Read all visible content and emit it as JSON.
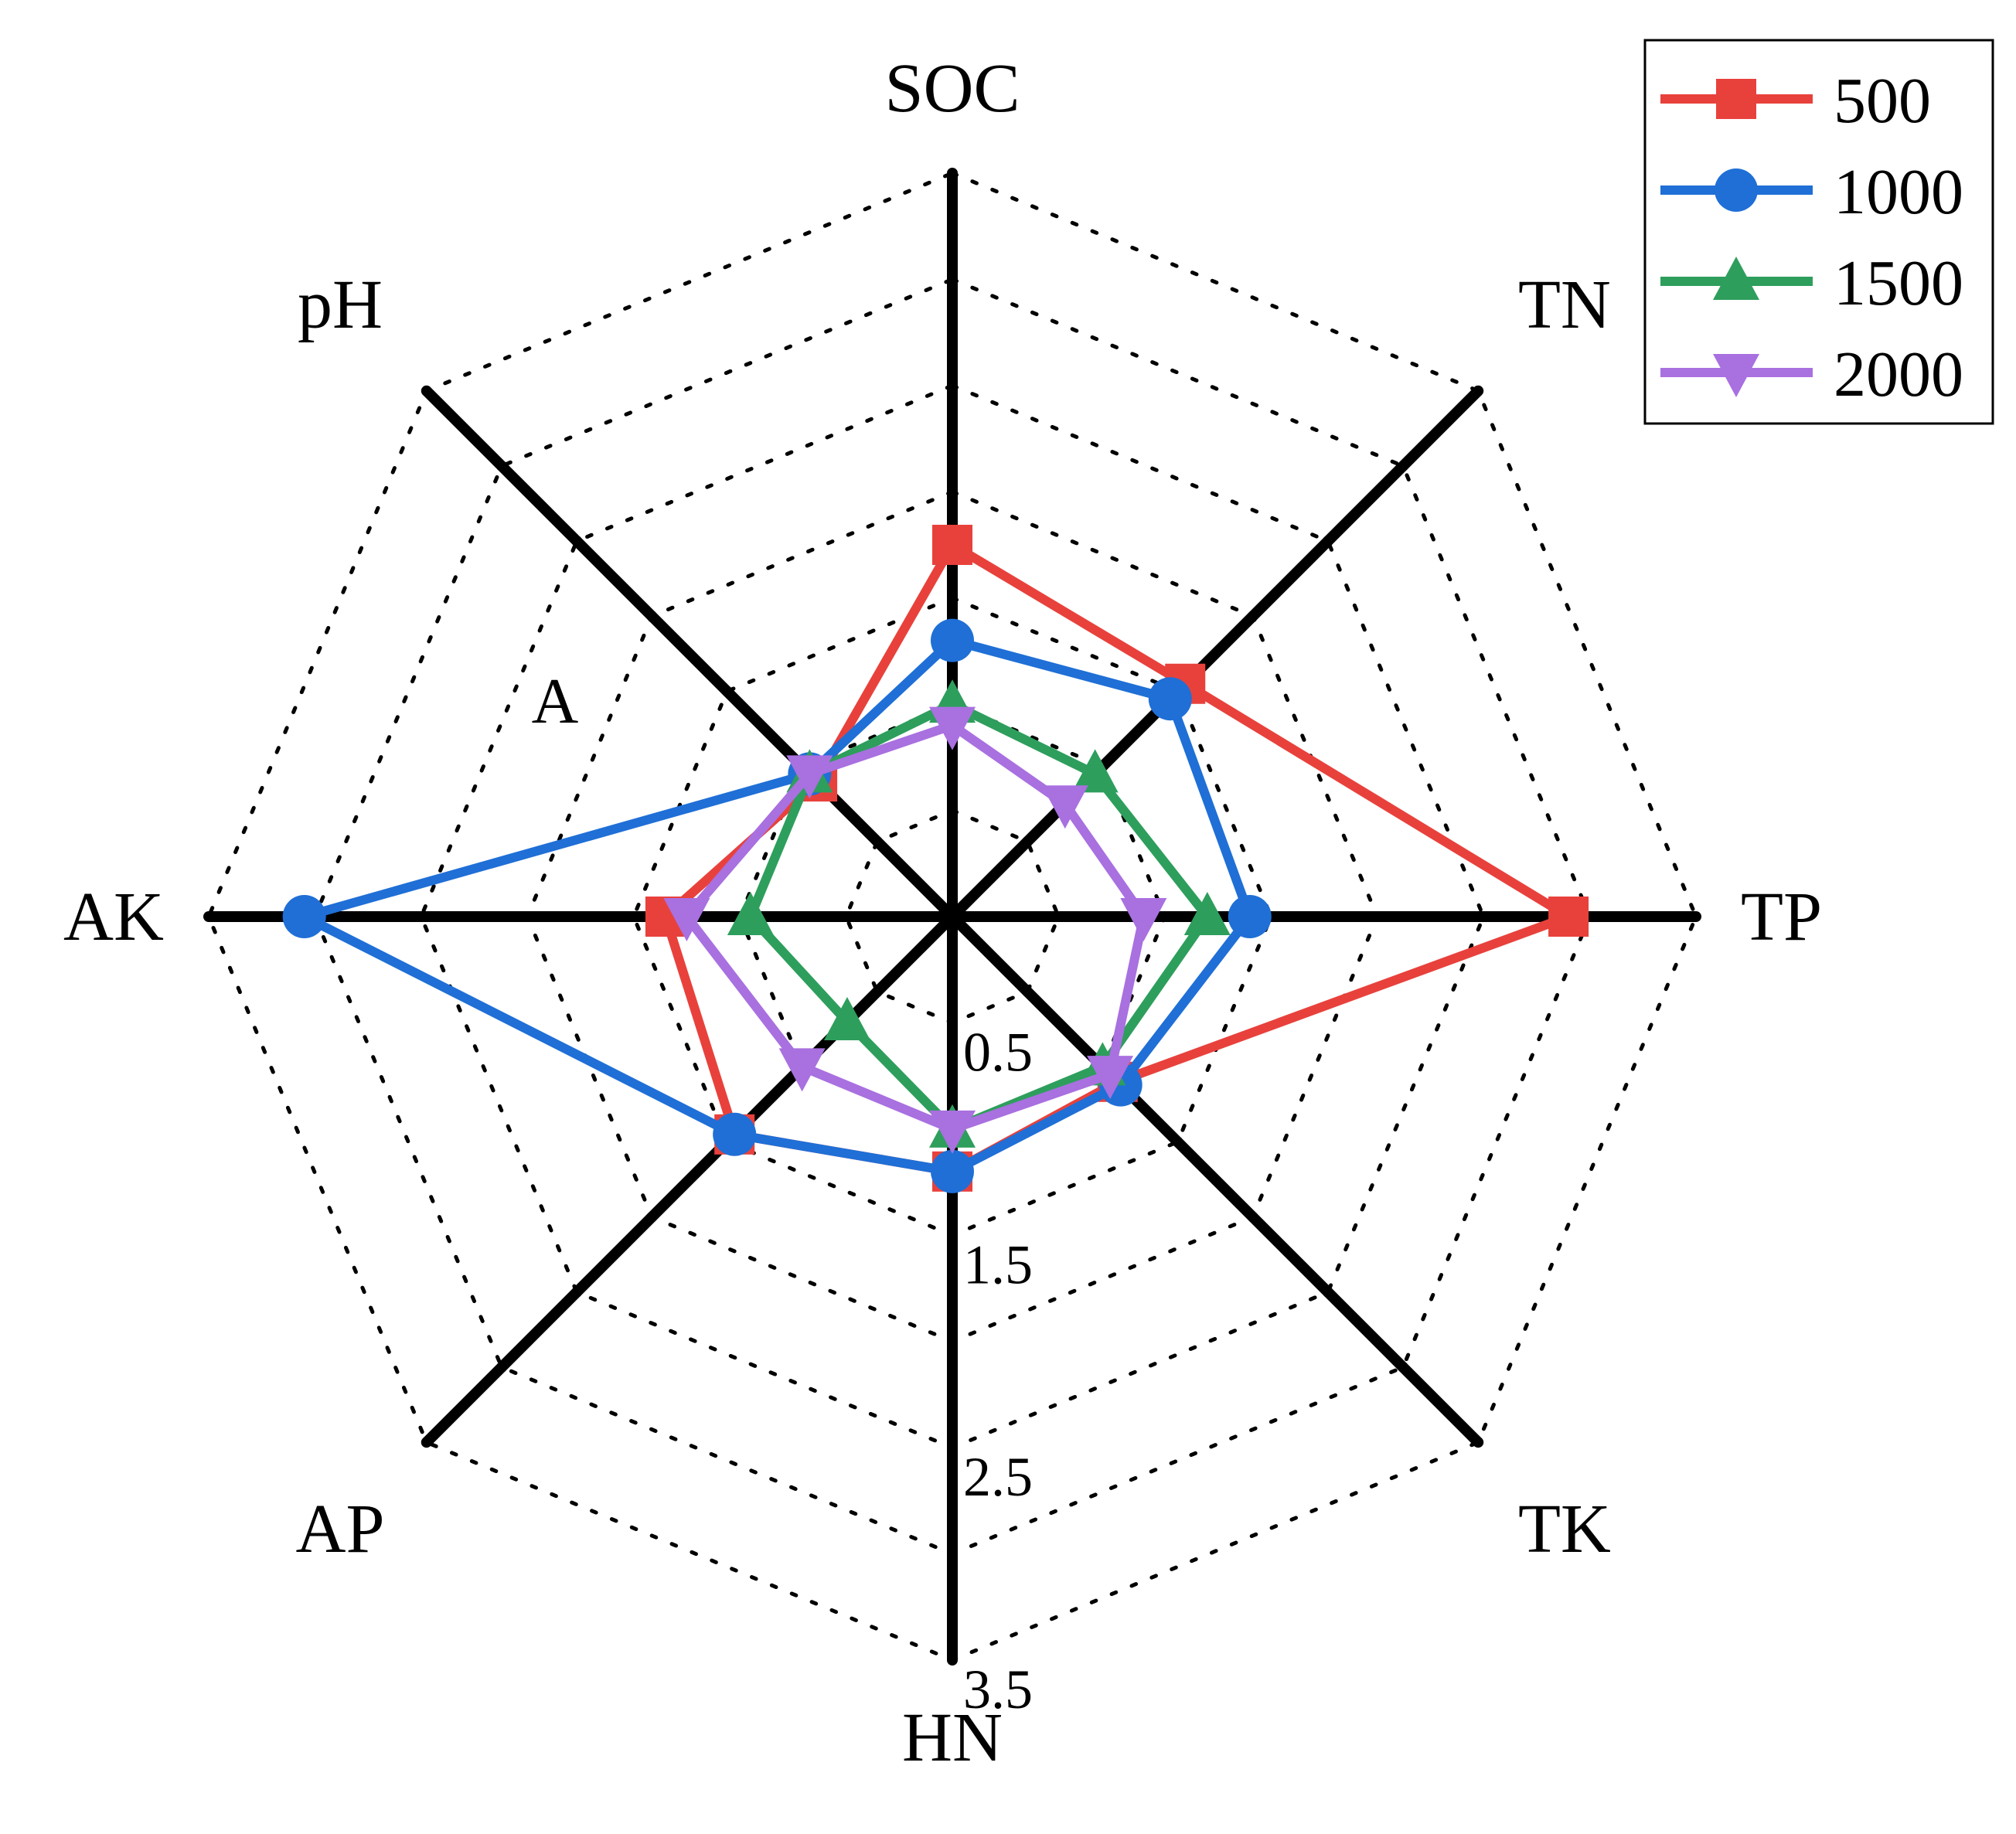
{
  "chart_data": {
    "type": "radar",
    "panel_label": "A",
    "axes": [
      "SOC",
      "TN",
      "TP",
      "TK",
      "HN",
      "AP",
      "AK",
      "pH"
    ],
    "axis_direction": "clockwise-from-top",
    "range": [
      0,
      3.5
    ],
    "rings": [
      0,
      0.5,
      1,
      1.5,
      2,
      2.5,
      3,
      3.5
    ],
    "tick_labels": [
      "0.5",
      "1.5",
      "2.5",
      "3.5"
    ],
    "grid": "dotted octagons",
    "legend_position": "top-right",
    "series": [
      {
        "name": "500",
        "color": "#e8413c",
        "marker": "square",
        "values": [
          1.75,
          1.55,
          2.9,
          1.1,
          1.2,
          1.45,
          1.35,
          0.9
        ]
      },
      {
        "name": "1000",
        "color": "#1f6fd6",
        "marker": "circle",
        "values": [
          1.3,
          1.45,
          1.4,
          1.12,
          1.2,
          1.45,
          3.05,
          0.95
        ]
      },
      {
        "name": "1500",
        "color": "#2e9e5c",
        "marker": "triangle-up",
        "values": [
          1.0,
          0.95,
          1.2,
          1.0,
          1.0,
          0.7,
          0.95,
          0.95
        ]
      },
      {
        "name": "2000",
        "color": "#a970e0",
        "marker": "triangle-down",
        "values": [
          0.9,
          0.75,
          0.9,
          1.05,
          1.0,
          1.0,
          1.25,
          0.95
        ]
      }
    ]
  }
}
